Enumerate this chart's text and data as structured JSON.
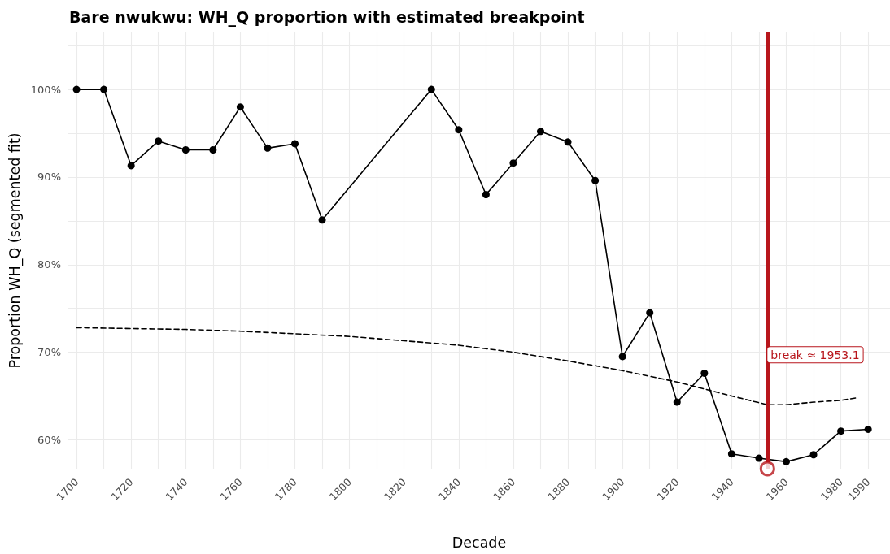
{
  "chart_data": {
    "type": "line",
    "title": "Bare nwukwu: WH_Q proportion with estimated breakpoint",
    "xlabel": "Decade",
    "ylabel": "Proportion WH_Q (segmented fit)",
    "xlim": [
      1697,
      1998
    ],
    "xticks": [
      1700,
      {
        "value": 1710,
        "label": null
      },
      1720,
      {
        "value": 1730,
        "label": null
      },
      1740,
      {
        "value": 1750,
        "label": null
      },
      1760,
      {
        "value": 1770,
        "label": null
      },
      1780,
      {
        "value": 1790,
        "label": null
      },
      1800,
      {
        "value": 1810,
        "label": null
      },
      1820,
      {
        "value": 1830,
        "label": null
      },
      1840,
      {
        "value": 1850,
        "label": null
      },
      1860,
      {
        "value": 1870,
        "label": null
      },
      1880,
      {
        "value": 1890,
        "label": null
      },
      1900,
      {
        "value": 1910,
        "label": null
      },
      1920,
      {
        "value": 1930,
        "label": null
      },
      1940,
      {
        "value": 1950,
        "label": null
      },
      1960,
      {
        "value": 1970,
        "label": null
      },
      1980,
      1990
    ],
    "ylim": [
      56.7,
      106.5
    ],
    "yticks": [
      {
        "value": 60,
        "label": "60%"
      },
      {
        "value": 65,
        "label": null
      },
      {
        "value": 70,
        "label": "70%"
      },
      {
        "value": 75,
        "label": null
      },
      {
        "value": 80,
        "label": "80%"
      },
      {
        "value": 85,
        "label": null
      },
      {
        "value": 90,
        "label": "90%"
      },
      {
        "value": 95,
        "label": null
      },
      {
        "value": 100,
        "label": "100%"
      },
      {
        "value": 105,
        "label": null
      }
    ],
    "grid": true,
    "series": [
      {
        "color": "#000000",
        "marker": "circle",
        "line_style": "solid",
        "x": [
          1700,
          1710,
          1720,
          1730,
          1740,
          1750,
          1760,
          1770,
          1780,
          1790,
          1830,
          1840,
          1850,
          1860,
          1870,
          1880,
          1890,
          1900,
          1910,
          1920,
          1930,
          1940,
          1950,
          1960,
          1970,
          1980,
          1990
        ],
        "values": [
          100,
          100,
          91.3,
          94.1,
          93.1,
          93.1,
          98.0,
          93.3,
          93.8,
          85.1,
          100,
          95.4,
          88.0,
          91.6,
          95.2,
          94.0,
          89.6,
          69.5,
          74.5,
          64.3,
          67.6,
          58.4,
          57.9,
          57.5,
          58.3,
          61.0,
          61.2
        ]
      },
      {
        "color": "#000000",
        "marker": "none",
        "line_style": "dashed",
        "x": [
          1700,
          1720,
          1740,
          1760,
          1780,
          1800,
          1820,
          1840,
          1860,
          1880,
          1900,
          1920,
          1940,
          1953.1,
          1960,
          1970,
          1980,
          1986
        ],
        "values": [
          72.8,
          72.7,
          72.6,
          72.4,
          72.1,
          71.8,
          71.3,
          70.8,
          70.0,
          69.0,
          67.9,
          66.6,
          65.0,
          64.0,
          64.0,
          64.3,
          64.5,
          64.8
        ]
      },
      {
        "type": "scatter",
        "color": "#b8161c",
        "marker": "circle",
        "x": [
          1953.1
        ],
        "values": [
          56.7
        ]
      }
    ],
    "ref_lines": [
      {
        "axis": "x",
        "value": 1953.1,
        "color": "#b8161c"
      }
    ],
    "annotations": [
      {
        "text": "break ≈ 1953.1",
        "x": 1953.1,
        "y": 69.7
      }
    ]
  }
}
